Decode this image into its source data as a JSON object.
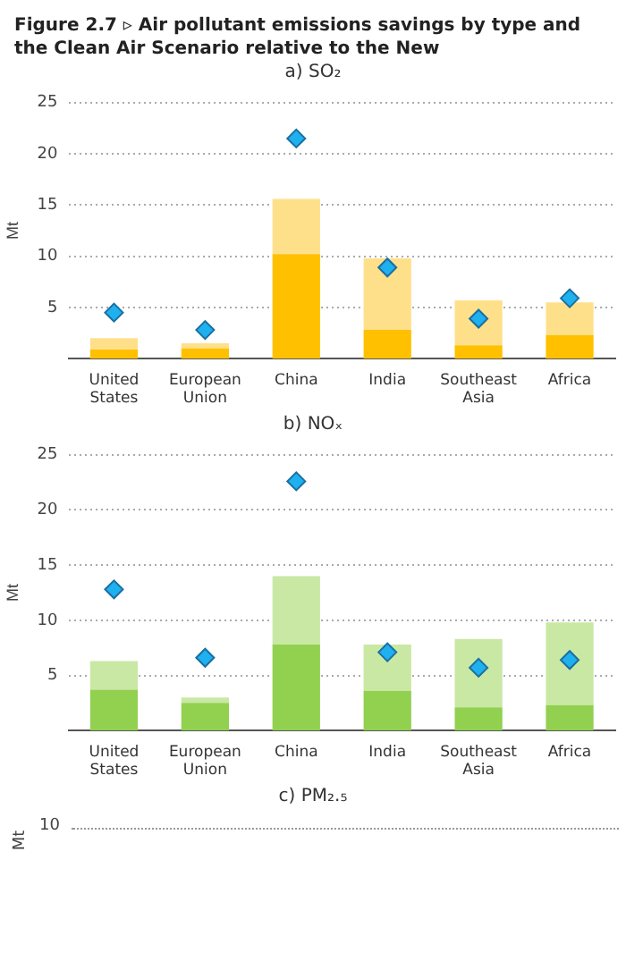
{
  "chart_data": [
    {
      "type": "bar",
      "title": "Figure 2.7 ▹ Air pollutant emissions savings by type and the Clean Air Scenario relative to the New",
      "subtitle": "a) SO₂",
      "ylabel": "Mt",
      "categories": [
        "United States",
        "European Union",
        "China",
        "India",
        "Southeast Asia",
        "Africa"
      ],
      "stacked": true,
      "ylim": [
        0,
        25
      ],
      "yticks": [
        5,
        10,
        15,
        20,
        25
      ],
      "grid": "y",
      "legend": false,
      "series": [
        {
          "color": "#ffc000",
          "values": [
            0.9,
            1.0,
            10.2,
            2.8,
            1.3,
            2.3
          ]
        },
        {
          "color": "#ffe08a",
          "values": [
            1.1,
            0.5,
            5.4,
            7.0,
            4.4,
            3.2
          ]
        },
        {
          "type": "scatter",
          "marker": "diamond",
          "color": "#1fb0ef",
          "x": [
            "United States",
            "European Union",
            "China",
            "India",
            "Southeast Asia",
            "Africa"
          ],
          "values": [
            4.5,
            2.8,
            21.5,
            8.9,
            3.9,
            5.9
          ]
        }
      ]
    },
    {
      "type": "bar",
      "title": "b) NOₓ",
      "ylabel": "Mt",
      "categories": [
        "United States",
        "European Union",
        "China",
        "India",
        "Southeast Asia",
        "Africa"
      ],
      "stacked": true,
      "ylim": [
        0,
        25
      ],
      "yticks": [
        5,
        10,
        15,
        20,
        25
      ],
      "grid": "y",
      "legend": false,
      "series": [
        {
          "color": "#92d050",
          "values": [
            3.7,
            2.5,
            7.8,
            3.6,
            2.1,
            2.3
          ]
        },
        {
          "color": "#c9e8a4",
          "values": [
            2.6,
            0.5,
            6.2,
            4.2,
            6.2,
            7.5
          ]
        },
        {
          "type": "scatter",
          "marker": "diamond",
          "color": "#1fb0ef",
          "x": [
            "United States",
            "European Union",
            "China",
            "India",
            "Southeast Asia",
            "Africa"
          ],
          "values": [
            12.8,
            6.6,
            22.6,
            7.1,
            5.7,
            6.4
          ]
        }
      ]
    },
    {
      "type": "other",
      "title": "c) PM₂.₅",
      "ylabel": "Mt",
      "annotations": [
        "10"
      ]
    }
  ]
}
